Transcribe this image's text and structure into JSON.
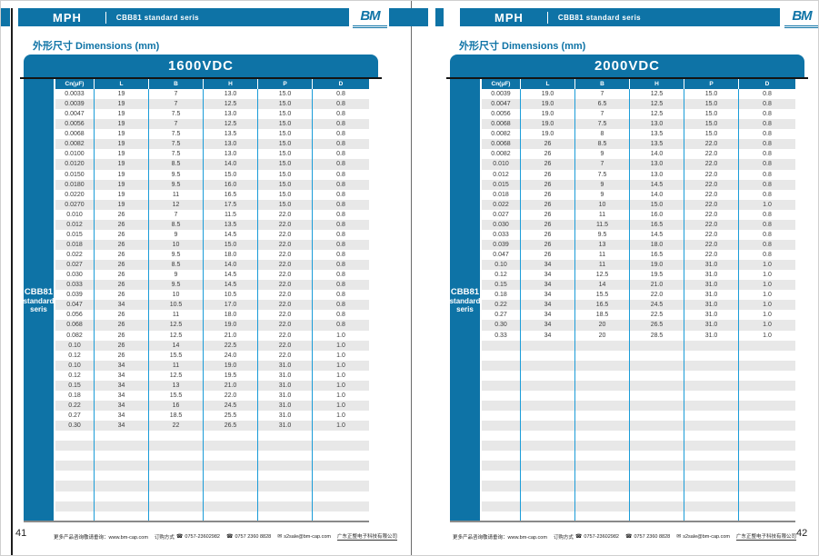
{
  "masthead": {
    "brand": "MPH",
    "series": "CBB81 standard seris",
    "logo": "BM"
  },
  "dimensions_title": "外形尺寸 Dimensions (mm)",
  "table_columns": [
    "Cn(μF)",
    "L",
    "B",
    "H",
    "P",
    "D"
  ],
  "side_label": [
    "CBB81",
    "standard",
    "seris"
  ],
  "tables": {
    "left": {
      "voltage": "1600VDC",
      "rows": [
        [
          "0.0033",
          "19",
          "7",
          "13.0",
          "15.0",
          "0.8"
        ],
        [
          "0.0039",
          "19",
          "7",
          "12.5",
          "15.0",
          "0.8"
        ],
        [
          "0.0047",
          "19",
          "7.5",
          "13.0",
          "15.0",
          "0.8"
        ],
        [
          "0.0056",
          "19",
          "7",
          "12.5",
          "15.0",
          "0.8"
        ],
        [
          "0.0068",
          "19",
          "7.5",
          "13.5",
          "15.0",
          "0.8"
        ],
        [
          "0.0082",
          "19",
          "7.5",
          "13.0",
          "15.0",
          "0.8"
        ],
        [
          "0.0100",
          "19",
          "7.5",
          "13.0",
          "15.0",
          "0.8"
        ],
        [
          "0.0120",
          "19",
          "8.5",
          "14.0",
          "15.0",
          "0.8"
        ],
        [
          "0.0150",
          "19",
          "9.5",
          "15.0",
          "15.0",
          "0.8"
        ],
        [
          "0.0180",
          "19",
          "9.5",
          "16.0",
          "15.0",
          "0.8"
        ],
        [
          "0.0220",
          "19",
          "11",
          "16.5",
          "15.0",
          "0.8"
        ],
        [
          "0.0270",
          "19",
          "12",
          "17.5",
          "15.0",
          "0.8"
        ],
        [
          "0.010",
          "26",
          "7",
          "11.5",
          "22.0",
          "0.8"
        ],
        [
          "0.012",
          "26",
          "8.5",
          "13.5",
          "22.0",
          "0.8"
        ],
        [
          "0.015",
          "26",
          "9",
          "14.5",
          "22.0",
          "0.8"
        ],
        [
          "0.018",
          "26",
          "10",
          "15.0",
          "22.0",
          "0.8"
        ],
        [
          "0.022",
          "26",
          "9.5",
          "18.0",
          "22.0",
          "0.8"
        ],
        [
          "0.027",
          "26",
          "8.5",
          "14.0",
          "22.0",
          "0.8"
        ],
        [
          "0.030",
          "26",
          "9",
          "14.5",
          "22.0",
          "0.8"
        ],
        [
          "0.033",
          "26",
          "9.5",
          "14.5",
          "22.0",
          "0.8"
        ],
        [
          "0.039",
          "26",
          "10",
          "10.5",
          "22.0",
          "0.8"
        ],
        [
          "0.047",
          "34",
          "10.5",
          "17.0",
          "22.0",
          "0.8"
        ],
        [
          "0.056",
          "26",
          "11",
          "18.0",
          "22.0",
          "0.8"
        ],
        [
          "0.068",
          "26",
          "12.5",
          "19.0",
          "22.0",
          "0.8"
        ],
        [
          "0.082",
          "26",
          "12.5",
          "21.0",
          "22.0",
          "1.0"
        ],
        [
          "0.10",
          "26",
          "14",
          "22.5",
          "22.0",
          "1.0"
        ],
        [
          "0.12",
          "26",
          "15.5",
          "24.0",
          "22.0",
          "1.0"
        ],
        [
          "0.10",
          "34",
          "11",
          "19.0",
          "31.0",
          "1.0"
        ],
        [
          "0.12",
          "34",
          "12.5",
          "19.5",
          "31.0",
          "1.0"
        ],
        [
          "0.15",
          "34",
          "13",
          "21.0",
          "31.0",
          "1.0"
        ],
        [
          "0.18",
          "34",
          "15.5",
          "22.0",
          "31.0",
          "1.0"
        ],
        [
          "0.22",
          "34",
          "16",
          "24.5",
          "31.0",
          "1.0"
        ],
        [
          "0.27",
          "34",
          "18.5",
          "25.5",
          "31.0",
          "1.0"
        ],
        [
          "0.30",
          "34",
          "22",
          "26.5",
          "31.0",
          "1.0"
        ]
      ],
      "empty_rows": 9
    },
    "right": {
      "voltage": "2000VDC",
      "rows": [
        [
          "0.0039",
          "19.0",
          "7",
          "12.5",
          "15.0",
          "0.8"
        ],
        [
          "0.0047",
          "19.0",
          "6.5",
          "12.5",
          "15.0",
          "0.8"
        ],
        [
          "0.0056",
          "19.0",
          "7",
          "12.5",
          "15.0",
          "0.8"
        ],
        [
          "0.0068",
          "19.0",
          "7.5",
          "13.0",
          "15.0",
          "0.8"
        ],
        [
          "0.0082",
          "19.0",
          "8",
          "13.5",
          "15.0",
          "0.8"
        ],
        [
          "0.0068",
          "26",
          "8.5",
          "13.5",
          "22.0",
          "0.8"
        ],
        [
          "0.0082",
          "26",
          "9",
          "14.0",
          "22.0",
          "0.8"
        ],
        [
          "0.010",
          "26",
          "7",
          "13.0",
          "22.0",
          "0.8"
        ],
        [
          "0.012",
          "26",
          "7.5",
          "13.0",
          "22.0",
          "0.8"
        ],
        [
          "0.015",
          "26",
          "9",
          "14.5",
          "22.0",
          "0.8"
        ],
        [
          "0.018",
          "26",
          "9",
          "14.0",
          "22.0",
          "0.8"
        ],
        [
          "0.022",
          "26",
          "10",
          "15.0",
          "22.0",
          "1.0"
        ],
        [
          "0.027",
          "26",
          "11",
          "16.0",
          "22.0",
          "0.8"
        ],
        [
          "0.030",
          "26",
          "11.5",
          "16.5",
          "22.0",
          "0.8"
        ],
        [
          "0.033",
          "26",
          "9.5",
          "14.5",
          "22.0",
          "0.8"
        ],
        [
          "0.039",
          "26",
          "13",
          "18.0",
          "22.0",
          "0.8"
        ],
        [
          "0.047",
          "26",
          "11",
          "16.5",
          "22.0",
          "0.8"
        ],
        [
          "0.10",
          "34",
          "11",
          "19.0",
          "31.0",
          "1.0"
        ],
        [
          "0.12",
          "34",
          "12.5",
          "19.5",
          "31.0",
          "1.0"
        ],
        [
          "0.15",
          "34",
          "14",
          "21.0",
          "31.0",
          "1.0"
        ],
        [
          "0.18",
          "34",
          "15.5",
          "22.0",
          "31.0",
          "1.0"
        ],
        [
          "0.22",
          "34",
          "16.5",
          "24.5",
          "31.0",
          "1.0"
        ],
        [
          "0.27",
          "34",
          "18.5",
          "22.5",
          "31.0",
          "1.0"
        ],
        [
          "0.30",
          "34",
          "20",
          "26.5",
          "31.0",
          "1.0"
        ],
        [
          "0.33",
          "34",
          "20",
          "28.5",
          "31.0",
          "1.0"
        ]
      ],
      "empty_rows": 18
    }
  },
  "footer": {
    "page_left": "41",
    "page_right": "42",
    "info": "更多产品咨询敬请垂询：www.bm-cap.com",
    "order": "订购方式",
    "phone1": "0757-23602982",
    "phone2": "0757 2360 8828",
    "email": "s2sale@bm-cap.com",
    "company": "广东正整电子科技有限公司"
  },
  "icons": {
    "phone": "☎",
    "email": "✉"
  },
  "colors": {
    "primary_blue": "#0e73a6",
    "divider_blue": "#1b9cd8",
    "alt_row": "#e8e8e8"
  }
}
